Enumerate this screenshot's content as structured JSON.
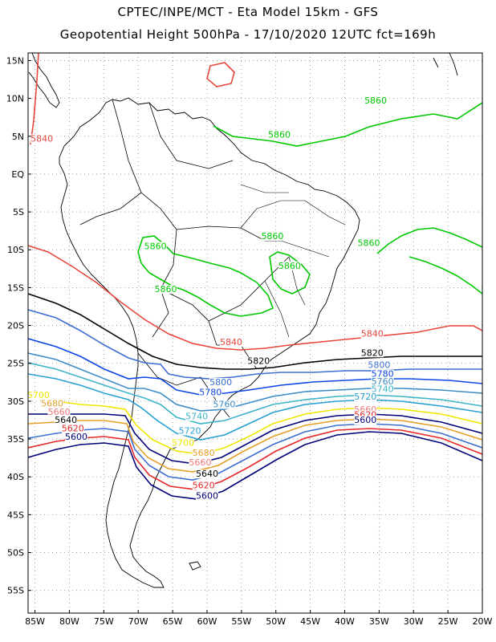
{
  "title_line1": "CPTEC/INPE/MCT -  Eta Model 15km - GFS",
  "title_line2": "Geopotential Height 500hPa - 17/10/2020 12UTC fct=169h",
  "map": {
    "projection": "lat-lon",
    "lon_range": [
      -86,
      -20
    ],
    "lat_range": [
      -58,
      16
    ],
    "x_ticks": [
      "85W",
      "80W",
      "75W",
      "70W",
      "65W",
      "60W",
      "55W",
      "50W",
      "45W",
      "40W",
      "35W",
      "30W",
      "25W",
      "20W"
    ],
    "y_ticks": [
      "15N",
      "10N",
      "5N",
      "EQ",
      "5S",
      "10S",
      "15S",
      "20S",
      "25S",
      "30S",
      "35S",
      "40S",
      "45S",
      "50S",
      "55S"
    ],
    "colors": {
      "5860": "#00c800",
      "5840": "#e8463c",
      "5820": "#000000",
      "5800": "#3c6fd0",
      "5780": "#0a46e6",
      "5760": "#3c8cc8",
      "5740": "#3cb4c8",
      "5720": "#28a0d2",
      "5700": "#f0e600",
      "5680": "#e6a028",
      "5660": "#f07878",
      "5620": "#e62828",
      "5600": "#000078",
      "land": "#000000",
      "grid": "#8c8c8c"
    },
    "contour_labels": [
      {
        "text": "5860",
        "level": "5860",
        "lon": -35.5,
        "lat": 9.3
      },
      {
        "text": "5860",
        "level": "5860",
        "lon": -49.5,
        "lat": 4.8
      },
      {
        "text": "5860",
        "level": "5860",
        "lon": -36.5,
        "lat": -9.5
      },
      {
        "text": "5860",
        "level": "5860",
        "lon": -67.5,
        "lat": -9.9
      },
      {
        "text": "5860",
        "level": "5860",
        "lon": -50.5,
        "lat": -8.6
      },
      {
        "text": "5860",
        "level": "5860",
        "lon": -48.0,
        "lat": -12.5
      },
      {
        "text": "5860",
        "level": "5860",
        "lon": -66.0,
        "lat": -15.6
      },
      {
        "text": "5840",
        "level": "5840",
        "lon": -84.0,
        "lat": 4.3
      },
      {
        "text": "5840",
        "level": "5840",
        "lon": -36.0,
        "lat": -21.5
      },
      {
        "text": "5840",
        "level": "5840",
        "lon": -56.5,
        "lat": -22.6
      },
      {
        "text": "5820",
        "level": "5820",
        "lon": -36.0,
        "lat": -24.0
      },
      {
        "text": "5820",
        "level": "5820",
        "lon": -52.5,
        "lat": -25.1
      },
      {
        "text": "5800",
        "level": "5800",
        "lon": -35.0,
        "lat": -25.6
      },
      {
        "text": "5800",
        "level": "5800",
        "lon": -58.0,
        "lat": -27.9
      },
      {
        "text": "5780",
        "level": "5780",
        "lon": -34.5,
        "lat": -26.8
      },
      {
        "text": "5780",
        "level": "5780",
        "lon": -59.5,
        "lat": -29.2
      },
      {
        "text": "5760",
        "level": "5760",
        "lon": -34.5,
        "lat": -27.8
      },
      {
        "text": "5760",
        "level": "5760",
        "lon": -57.5,
        "lat": -30.8
      },
      {
        "text": "5740",
        "level": "5740",
        "lon": -34.5,
        "lat": -28.8
      },
      {
        "text": "5740",
        "level": "5740",
        "lon": -61.5,
        "lat": -32.4
      },
      {
        "text": "5720",
        "level": "5720",
        "lon": -37.0,
        "lat": -29.8
      },
      {
        "text": "5720",
        "level": "5720",
        "lon": -62.5,
        "lat": -34.3
      },
      {
        "text": "5700",
        "level": "5700",
        "lon": -84.5,
        "lat": -29.6
      },
      {
        "text": "5700",
        "level": "5700",
        "lon": -63.5,
        "lat": -35.9
      },
      {
        "text": "5680",
        "level": "5680",
        "lon": -82.5,
        "lat": -30.7
      },
      {
        "text": "5680",
        "level": "5680",
        "lon": -60.5,
        "lat": -37.2
      },
      {
        "text": "5660",
        "level": "5660",
        "lon": -81.5,
        "lat": -31.8
      },
      {
        "text": "5660",
        "level": "5660",
        "lon": -61.0,
        "lat": -38.5
      },
      {
        "text": "5640",
        "level": "5640",
        "lon": -80.5,
        "lat": -32.9
      },
      {
        "text": "5640",
        "level": "5640",
        "lon": -60.0,
        "lat": -40.0
      },
      {
        "text": "5620",
        "level": "5620",
        "lon": -79.5,
        "lat": -34.0
      },
      {
        "text": "5620",
        "level": "5620",
        "lon": -60.5,
        "lat": -41.5
      },
      {
        "text": "5600",
        "level": "5600",
        "lon": -79.0,
        "lat": -35.1
      },
      {
        "text": "5600",
        "level": "5600",
        "lon": -60.0,
        "lat": -42.9
      },
      {
        "text": "5660",
        "level": "5660",
        "lon": -37.0,
        "lat": -31.5
      },
      {
        "text": "5620",
        "level": "5620",
        "lon": -37.0,
        "lat": -32.2
      },
      {
        "text": "5600",
        "level": "5600",
        "lon": -37.0,
        "lat": -32.9
      }
    ]
  }
}
